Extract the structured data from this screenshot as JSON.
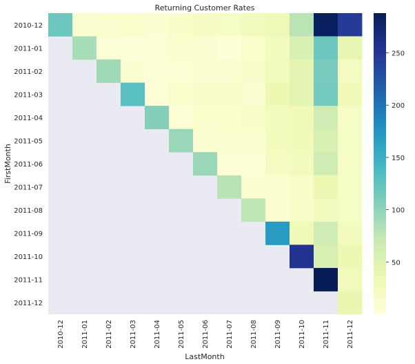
{
  "chart_data": {
    "type": "heatmap",
    "title": "Returning Customer Rates",
    "xlabel": "LastMonth",
    "ylabel": "FirstMonth",
    "x_categories": [
      "2010-12",
      "2011-01",
      "2011-02",
      "2011-03",
      "2011-04",
      "2011-05",
      "2011-06",
      "2011-07",
      "2011-08",
      "2011-09",
      "2011-10",
      "2011-11",
      "2011-12"
    ],
    "y_categories": [
      "2010-12",
      "2011-01",
      "2011-02",
      "2011-03",
      "2011-04",
      "2011-05",
      "2011-06",
      "2011-07",
      "2011-08",
      "2011-09",
      "2011-10",
      "2011-11",
      "2011-12"
    ],
    "values": [
      [
        118,
        8,
        10,
        12,
        6,
        15,
        20,
        18,
        25,
        32,
        78,
        285,
        245
      ],
      [
        null,
        88,
        3,
        3,
        4,
        10,
        8,
        2,
        12,
        25,
        55,
        118,
        42
      ],
      [
        null,
        null,
        92,
        6,
        4,
        5,
        8,
        8,
        15,
        28,
        45,
        112,
        22
      ],
      [
        null,
        null,
        null,
        130,
        3,
        12,
        15,
        15,
        8,
        35,
        45,
        115,
        30
      ],
      [
        null,
        null,
        null,
        null,
        105,
        4,
        12,
        12,
        15,
        25,
        30,
        65,
        18
      ],
      [
        null,
        null,
        null,
        null,
        null,
        95,
        8,
        10,
        10,
        25,
        30,
        55,
        18
      ],
      [
        null,
        null,
        null,
        null,
        null,
        null,
        95,
        5,
        5,
        20,
        25,
        65,
        18
      ],
      [
        null,
        null,
        null,
        null,
        null,
        null,
        null,
        80,
        8,
        10,
        15,
        35,
        18
      ],
      [
        null,
        null,
        null,
        null,
        null,
        null,
        null,
        null,
        75,
        8,
        15,
        25,
        18
      ],
      [
        null,
        null,
        null,
        null,
        null,
        null,
        null,
        null,
        null,
        170,
        30,
        65,
        25
      ],
      [
        null,
        null,
        null,
        null,
        null,
        null,
        null,
        null,
        null,
        null,
        255,
        55,
        35
      ],
      [
        null,
        null,
        null,
        null,
        null,
        null,
        null,
        null,
        null,
        null,
        null,
        288,
        28
      ],
      [
        null,
        null,
        null,
        null,
        null,
        null,
        null,
        null,
        null,
        null,
        null,
        null,
        38
      ]
    ],
    "colormap": "YlGnBu",
    "vmin": 0,
    "vmax": 288,
    "colorbar_ticks": [
      50,
      100,
      150,
      200,
      250
    ],
    "missing_color": "#eaeaf2",
    "grid": false
  }
}
